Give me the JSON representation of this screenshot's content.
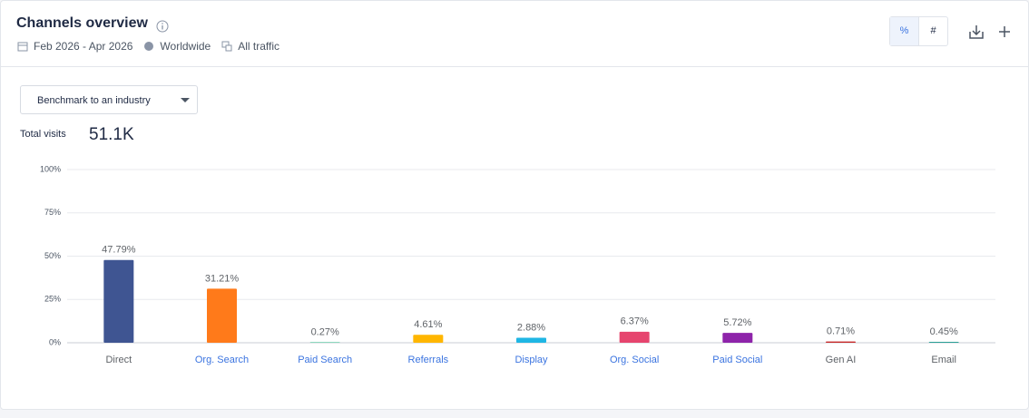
{
  "header": {
    "title": "Channels overview",
    "date_range": "Feb 2026 - Apr 2026",
    "region": "Worldwide",
    "traffic": "All traffic"
  },
  "toggles": [
    "%",
    "#"
  ],
  "dropdown": "Benchmark to an industry",
  "total_visits": {
    "label": "Total visits",
    "value": "51.1K"
  },
  "chart_data": {
    "type": "bar",
    "categories": [
      "Direct",
      "Org. Search",
      "Paid Search",
      "Referrals",
      "Display",
      "Org. Social",
      "Paid Social",
      "Gen AI",
      "Email"
    ],
    "category_label_colors": [
      "#5f6368",
      "#3b74e0",
      "#3b74e0",
      "#3b74e0",
      "#3b74e0",
      "#3b74e0",
      "#3b74e0",
      "#5f6368",
      "#5f6368"
    ],
    "values": [
      47.79,
      31.21,
      0.27,
      4.61,
      2.88,
      6.37,
      5.72,
      0.71,
      0.45
    ],
    "value_labels": [
      "47.79%",
      "31.21%",
      "0.27%",
      "4.61%",
      "2.88%",
      "6.37%",
      "5.72%",
      "0.71%",
      "0.45%"
    ],
    "colors": [
      "#3f5592",
      "#ff7a1a",
      "#1ab37c",
      "#ffb600",
      "#1fb6e4",
      "#e6456e",
      "#8e24aa",
      "#c62828",
      "#0d9488"
    ],
    "ylim": [
      0,
      100
    ],
    "yticks": [
      {
        "value": 0,
        "label": "0%"
      },
      {
        "value": 25,
        "label": "25%"
      },
      {
        "value": 50,
        "label": "50%"
      },
      {
        "value": 75,
        "label": "75%"
      },
      {
        "value": 100,
        "label": "100%"
      }
    ],
    "grid": true
  }
}
